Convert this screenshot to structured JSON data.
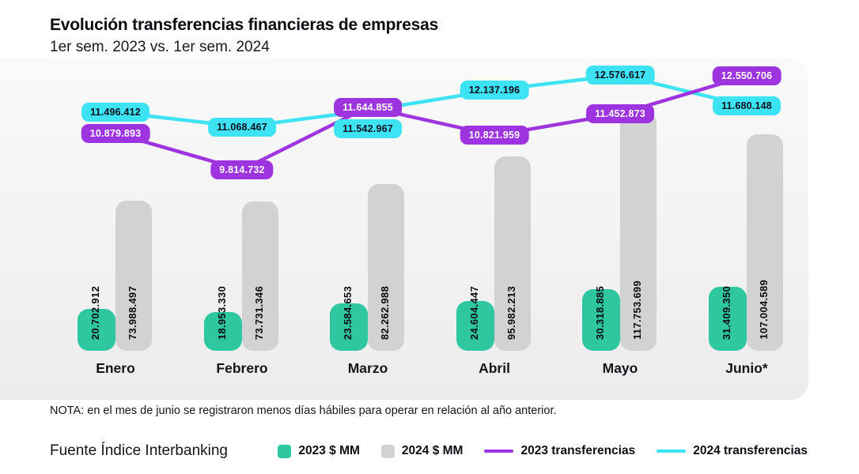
{
  "header": {
    "title": "Evolución transferencias financieras de empresas",
    "subtitle": "1er sem. 2023 vs. 1er sem. 2024"
  },
  "note": "NOTA: en el mes de junio se registraron menos días hábiles para operar en relación al año anterior.",
  "source": "Fuente Índice Interbanking",
  "colors": {
    "teal": "#2EC7A0",
    "gray": "#D2D2D2",
    "purple": "#9E33E0",
    "cyan": "#3DE2F3"
  },
  "chart_data": {
    "type": "bar+line",
    "title": "Evolución transferencias financieras de empresas",
    "subtitle": "1er sem. 2023 vs. 1er sem. 2024",
    "categories": [
      "Enero",
      "Febrero",
      "Marzo",
      "Abril",
      "Mayo",
      "Junio*"
    ],
    "grid": false,
    "legend_position": "bottom",
    "series": [
      {
        "name": "2023 $ MM",
        "type": "bar",
        "color_key": "teal",
        "values": [
          20702912,
          18953330,
          23584653,
          24604447,
          30318885,
          31409350
        ],
        "labels": [
          "20.702.912",
          "18.953.330",
          "23.584.653",
          "24.604.447",
          "30.318.885",
          "31.409.350"
        ]
      },
      {
        "name": "2024 $ MM",
        "type": "bar",
        "color_key": "gray",
        "values": [
          73988497,
          73731346,
          82262988,
          95982213,
          117753699,
          107004589
        ],
        "labels": [
          "73.988.497",
          "73.731.346",
          "82.262.988",
          "95.982.213",
          "117.753.699",
          "107.004.589"
        ]
      },
      {
        "name": "2023 transferencias",
        "type": "line",
        "color_key": "purple",
        "values": [
          10879893,
          9814732,
          11644855,
          10821959,
          11452873,
          12550706
        ],
        "labels": [
          "10.879.893",
          "9.814.732",
          "11.644.855",
          "10.821.959",
          "11.452.873",
          "12.550.706"
        ]
      },
      {
        "name": "2024 transferencias",
        "type": "line",
        "color_key": "cyan",
        "values": [
          11496412,
          11068467,
          11542967,
          12137196,
          12576617,
          11680148
        ],
        "labels": [
          "11.496.412",
          "11.068.467",
          "11.542.967",
          "12.137.196",
          "12.576.617",
          "11.680.148"
        ]
      }
    ]
  },
  "legend": [
    {
      "label": "2023 $ MM",
      "swatch": "square",
      "color_key": "teal"
    },
    {
      "label": "2024 $ MM",
      "swatch": "square",
      "color_key": "gray"
    },
    {
      "label": "2023 transferencias",
      "swatch": "line",
      "color_key": "purple"
    },
    {
      "label": "2024 transferencias",
      "swatch": "line",
      "color_key": "cyan"
    }
  ]
}
